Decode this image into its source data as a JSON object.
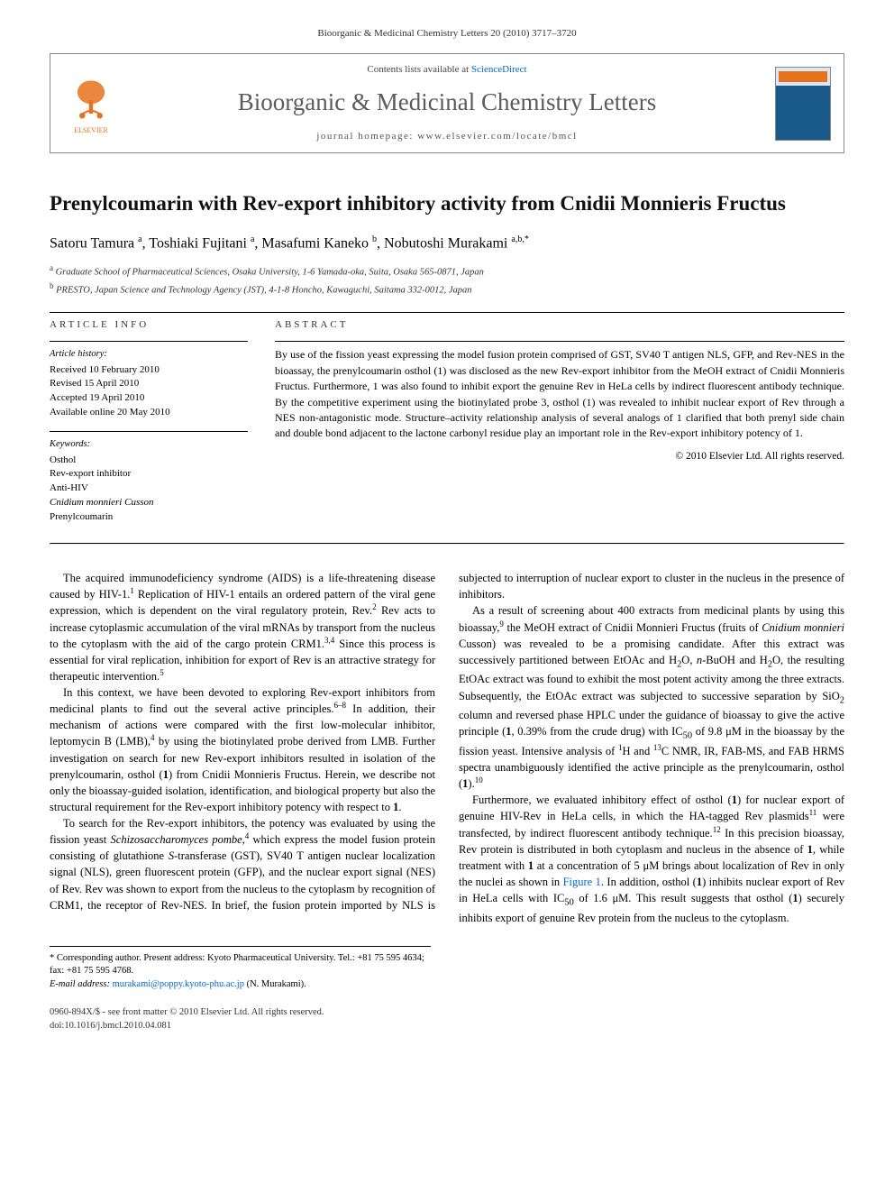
{
  "citation": "Bioorganic & Medicinal Chemistry Letters 20 (2010) 3717–3720",
  "header": {
    "contents_prefix": "Contents lists available at ",
    "contents_link": "ScienceDirect",
    "journal_name": "Bioorganic & Medicinal Chemistry Letters",
    "homepage": "journal homepage: www.elsevier.com/locate/bmcl",
    "publisher_label": "ELSEVIER"
  },
  "title": "Prenylcoumarin with Rev-export inhibitory activity from Cnidii Monnieris Fructus",
  "authors_html": "Satoru Tamura <sup>a</sup>, Toshiaki Fujitani <sup>a</sup>, Masafumi Kaneko <sup>b</sup>, Nobutoshi Murakami <sup>a,b,*</sup>",
  "affiliations": [
    {
      "sup": "a",
      "text": "Graduate School of Pharmaceutical Sciences, Osaka University, 1-6 Yamada-oka, Suita, Osaka 565-0871, Japan"
    },
    {
      "sup": "b",
      "text": "PRESTO, Japan Science and Technology Agency (JST), 4-1-8 Honcho, Kawaguchi, Saitama 332-0012, Japan"
    }
  ],
  "article_info": {
    "heading": "ARTICLE INFO",
    "history_label": "Article history:",
    "history": [
      "Received 10 February 2010",
      "Revised 15 April 2010",
      "Accepted 19 April 2010",
      "Available online 20 May 2010"
    ],
    "keywords_label": "Keywords:",
    "keywords": [
      "Osthol",
      "Rev-export inhibitor",
      "Anti-HIV",
      "Cnidium monnieri Cusson",
      "Prenylcoumarin"
    ]
  },
  "abstract": {
    "heading": "ABSTRACT",
    "text": "By use of the fission yeast expressing the model fusion protein comprised of GST, SV40 T antigen NLS, GFP, and Rev-NES in the bioassay, the prenylcoumarin osthol (1) was disclosed as the new Rev-export inhibitor from the MeOH extract of Cnidii Monnieris Fructus. Furthermore, 1 was also found to inhibit export the genuine Rev in HeLa cells by indirect fluorescent antibody technique. By the competitive experiment using the biotinylated probe 3, osthol (1) was revealed to inhibit nuclear export of Rev through a NES non-antagonistic mode. Structure–activity relationship analysis of several analogs of 1 clarified that both prenyl side chain and double bond adjacent to the lactone carbonyl residue play an important role in the Rev-export inhibitory potency of 1.",
    "copyright": "© 2010 Elsevier Ltd. All rights reserved."
  },
  "body": {
    "p1": "The acquired immunodeficiency syndrome (AIDS) is a life-threatening disease caused by HIV-1.<sup>1</sup> Replication of HIV-1 entails an ordered pattern of the viral gene expression, which is dependent on the viral regulatory protein, Rev.<sup>2</sup> Rev acts to increase cytoplasmic accumulation of the viral mRNAs by transport from the nucleus to the cytoplasm with the aid of the cargo protein CRM1.<sup>3,4</sup> Since this process is essential for viral replication, inhibition for export of Rev is an attractive strategy for therapeutic intervention.<sup>5</sup>",
    "p2": "In this context, we have been devoted to exploring Rev-export inhibitors from medicinal plants to find out the several active principles.<sup>6–8</sup> In addition, their mechanism of actions were compared with the first low-molecular inhibitor, leptomycin B (LMB),<sup>4</sup> by using the biotinylated probe derived from LMB. Further investigation on search for new Rev-export inhibitors resulted in isolation of the prenylcoumarin, osthol (<b>1</b>) from Cnidii Monnieris Fructus. Herein, we describe not only the bioassay-guided isolation, identification, and biological property but also the structural requirement for the Rev-export inhibitory potency with respect to <b>1</b>.",
    "p3": "To search for the Rev-export inhibitors, the potency was evaluated by using the fission yeast <i>Schizosaccharomyces pombe</i>,<sup>4</sup> which express the model fusion protein consisting of glutathione <i>S</i>-transferase (GST), SV40 T antigen nuclear localization signal (NLS), green fluorescent protein (GFP), and the nuclear export signal (NES) of Rev. Rev was shown to export from the nucleus to the cytoplasm by recognition of CRM1, the receptor of Rev-NES. In brief, the fusion protein imported by NLS is subjected to interruption of nuclear export to cluster in the nucleus in the presence of inhibitors.",
    "p4": "As a result of screening about 400 extracts from medicinal plants by using this bioassay,<sup>9</sup> the MeOH extract of Cnidii Monnieri Fructus (fruits of <i>Cnidium monnieri</i> Cusson) was revealed to be a promising candidate. After this extract was successively partitioned between EtOAc and H<sub>2</sub>O, <i>n</i>-BuOH and H<sub>2</sub>O, the resulting EtOAc extract was found to exhibit the most potent activity among the three extracts. Subsequently, the EtOAc extract was subjected to successive separation by SiO<sub>2</sub> column and reversed phase HPLC under the guidance of bioassay to give the active principle (<b>1</b>, 0.39% from the crude drug) with IC<sub>50</sub> of 9.8 μM in the bioassay by the fission yeast. Intensive analysis of <sup>1</sup>H and <sup>13</sup>C NMR, IR, FAB-MS, and FAB HRMS spectra unambiguously identified the active principle as the prenylcoumarin, osthol (<b>1</b>).<sup>10</sup>",
    "p5": "Furthermore, we evaluated inhibitory effect of osthol (<b>1</b>) for nuclear export of genuine HIV-Rev in HeLa cells, in which the HA-tagged Rev plasmids<sup>11</sup> were transfected, by indirect fluorescent antibody technique.<sup>12</sup> In this precision bioassay, Rev protein is distributed in both cytoplasm and nucleus in the absence of <b>1</b>, while treatment with <b>1</b> at a concentration of 5 μM brings about localization of Rev in only the nuclei as shown in <a>Figure 1</a>. In addition, osthol (<b>1</b>) inhibits nuclear export of Rev in HeLa cells with IC<sub>50</sub> of 1.6 μM. This result suggests that osthol (<b>1</b>) securely inhibits export of genuine Rev protein from the nucleus to the cytoplasm."
  },
  "footnotes": {
    "corresponding": "* Corresponding author. Present address: Kyoto Pharmaceutical University. Tel.: +81 75 595 4634; fax: +81 75 595 4768.",
    "email_label": "E-mail address:",
    "email": "murakami@poppy.kyoto-phu.ac.jp",
    "email_suffix": "(N. Murakami)."
  },
  "bottom": {
    "line1": "0960-894X/$ - see front matter © 2010 Elsevier Ltd. All rights reserved.",
    "line2": "doi:10.1016/j.bmcl.2010.04.081"
  },
  "colors": {
    "link": "#0066cc",
    "elsevier_orange": "#e8711c",
    "journal_gray": "#5b5b5b"
  }
}
